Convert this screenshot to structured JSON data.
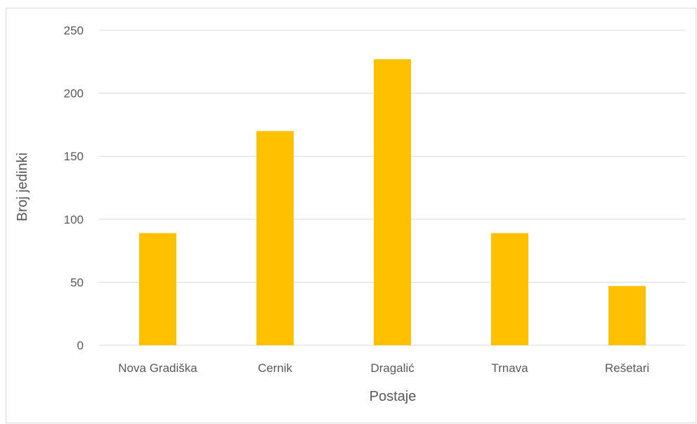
{
  "chart_data": {
    "type": "bar",
    "categories": [
      "Nova Gradiška",
      "Cernik",
      "Dragalić",
      "Trnava",
      "Rešetari"
    ],
    "values": [
      89,
      170,
      227,
      89,
      47
    ],
    "xlabel": "Postaje",
    "ylabel": "Broj jedinki",
    "ylim": [
      0,
      250
    ],
    "yticks": [
      0,
      50,
      100,
      150,
      200,
      250
    ],
    "grid": true,
    "bar_color": "#FFC000",
    "grid_color": "#D9D9D9",
    "text_color": "#595959"
  }
}
